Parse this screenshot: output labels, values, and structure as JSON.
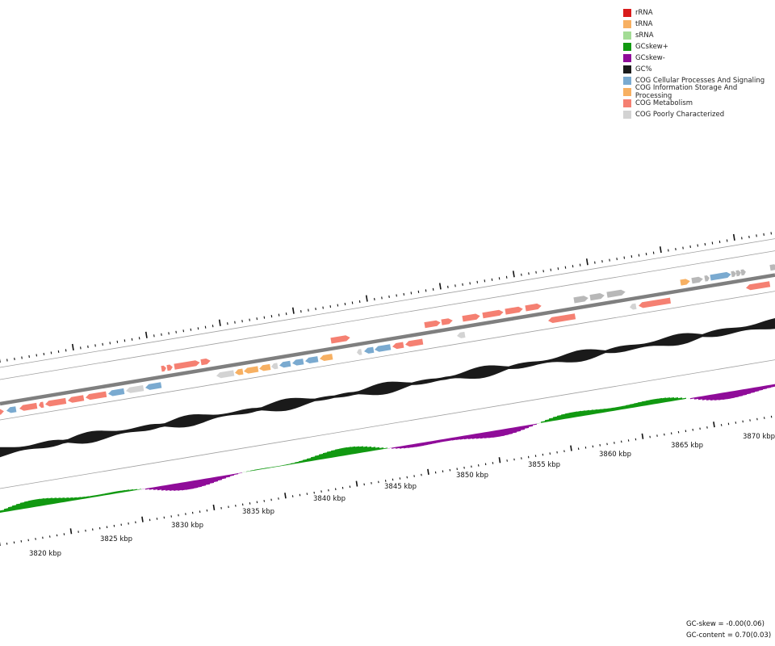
{
  "colors": {
    "cog_cellular": "#7aaad0",
    "cog_information": "#f7b062",
    "cog_metabolism": "#f58072",
    "cog_poor": "#d3d3d3",
    "gc_content": "#1a1a1a",
    "gc_skew_plus": "#119911",
    "gc_skew_minus": "#8f0c99",
    "backbone": "#808080"
  },
  "legend": {
    "items": [
      {
        "label": "rRNA",
        "color": "#d91c1c"
      },
      {
        "label": "tRNA",
        "color": "#f7b062"
      },
      {
        "label": "sRNA",
        "color": "#a3dc95"
      },
      {
        "label": "GCskew+",
        "color": "#119911"
      },
      {
        "label": "GCskew-",
        "color": "#8f0c99"
      },
      {
        "label": "GC%",
        "color": "#1a1a1a"
      },
      {
        "label": "COG Cellular Processes And Signaling",
        "color": "#7aaad0"
      },
      {
        "label": "COG Information Storage And Processing",
        "color": "#f7b062"
      },
      {
        "label": "COG Metabolism",
        "color": "#f58072"
      },
      {
        "label": "COG Poorly Characterized",
        "color": "#d3d3d3"
      }
    ]
  },
  "axis": {
    "unit": "kbp",
    "labels": [
      "3820 kbp",
      "3825 kbp",
      "3830 kbp",
      "3835 kbp",
      "3840 kbp",
      "3845 kbp",
      "3850 kbp",
      "3855 kbp",
      "3860 kbp",
      "3865 kbp",
      "3870 kbp"
    ]
  },
  "stats": {
    "gc_skew": "GC-skew = -0.00(0.06)",
    "gc_content": "GC-content = 0.70(0.03)"
  }
}
